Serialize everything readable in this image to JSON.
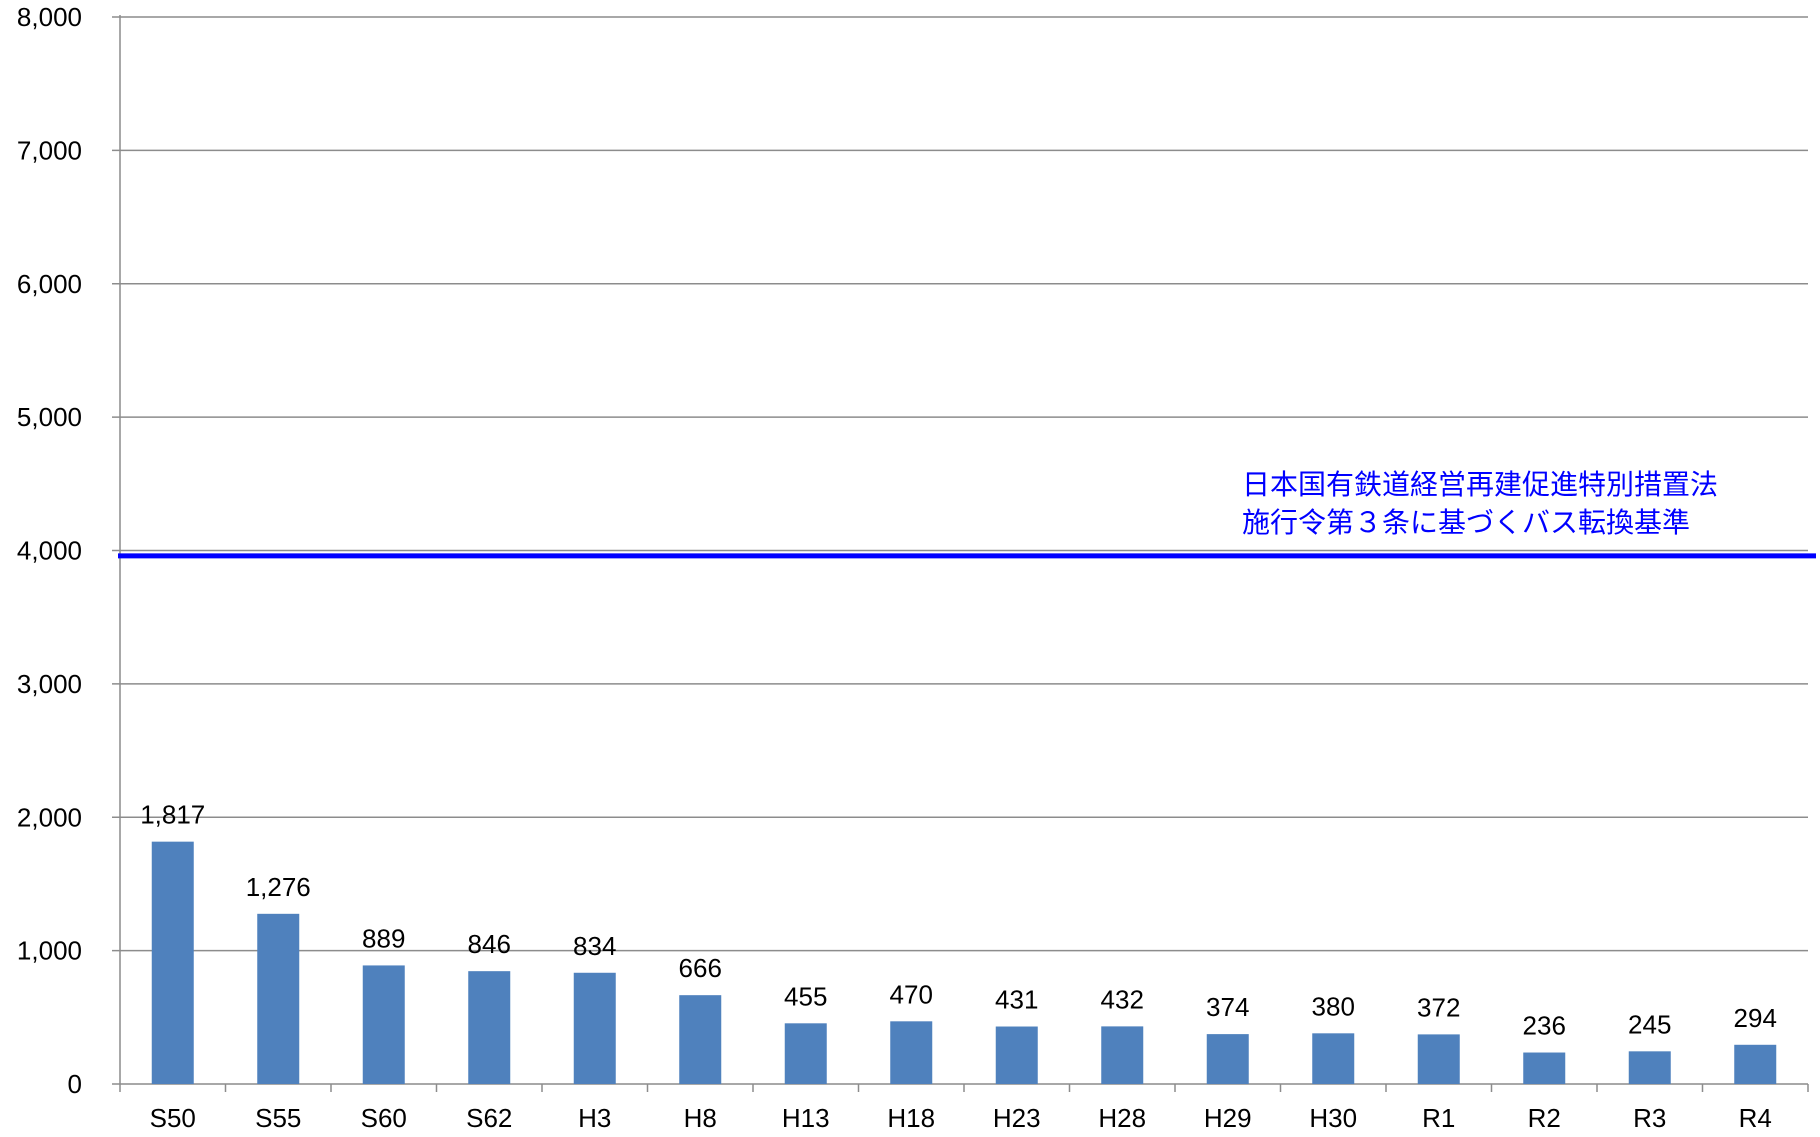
{
  "chart_data": {
    "type": "bar",
    "categories": [
      "S50",
      "S55",
      "S60",
      "S62",
      "H3",
      "H8",
      "H13",
      "H18",
      "H23",
      "H28",
      "H29",
      "H30",
      "R1",
      "R2",
      "R3",
      "R4"
    ],
    "values": [
      1817,
      1276,
      889,
      846,
      834,
      666,
      455,
      470,
      431,
      432,
      374,
      380,
      372,
      236,
      245,
      294
    ],
    "value_labels": [
      "1,817",
      "1,276",
      "889",
      "846",
      "834",
      "666",
      "455",
      "470",
      "431",
      "432",
      "374",
      "380",
      "372",
      "236",
      "245",
      "294"
    ],
    "y_ticks": [
      0,
      1000,
      2000,
      3000,
      4000,
      5000,
      6000,
      7000,
      8000
    ],
    "y_tick_labels": [
      "0",
      "1,000",
      "2,000",
      "3,000",
      "4,000",
      "5,000",
      "6,000",
      "7,000",
      "8,000"
    ],
    "ylim": [
      0,
      8000
    ],
    "grid": true,
    "bar_color": "#4f81bd",
    "reference_line": {
      "value": 3960,
      "color": "#0000ff",
      "label_lines": [
        "日本国有鉄道経営再建促進特別措置法",
        "施行令第３条に基づくバス転換基準"
      ]
    }
  }
}
